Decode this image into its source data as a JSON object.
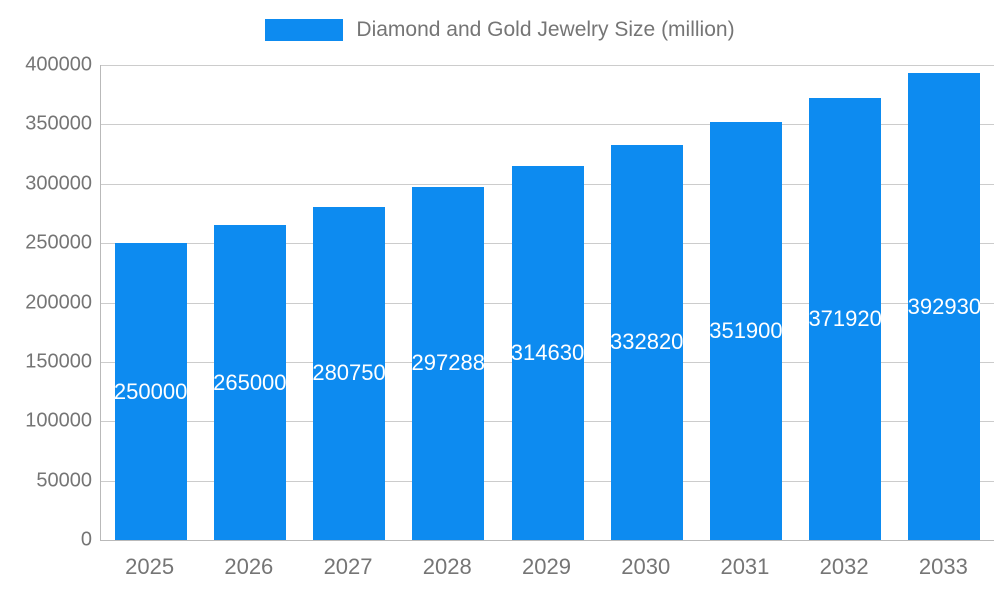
{
  "legend": {
    "label": "Diamond and Gold Jewelry Size (million)"
  },
  "chart_data": {
    "type": "bar",
    "title": "Diamond and Gold Jewelry Size (million)",
    "categories": [
      "2025",
      "2026",
      "2027",
      "2028",
      "2029",
      "2030",
      "2031",
      "2032",
      "2033"
    ],
    "values": [
      250000,
      265000,
      280750,
      297288,
      314630,
      332820,
      351900,
      371920,
      392930
    ],
    "value_labels": [
      "250000",
      "265000",
      "280750",
      "297288",
      "314630",
      "332820",
      "351900",
      "371920",
      "392930"
    ],
    "xlabel": "",
    "ylabel": "",
    "ylim": [
      0,
      400000
    ],
    "ytick_step": 50000,
    "yticks": [
      "0",
      "50000",
      "100000",
      "150000",
      "200000",
      "250000",
      "300000",
      "350000",
      "400000"
    ],
    "grid": true,
    "legend_position": "top",
    "colors": {
      "bar": "#0d8bf0",
      "grid": "#cccccc",
      "axis_text": "#757575",
      "value_label": "#ffffff"
    }
  }
}
